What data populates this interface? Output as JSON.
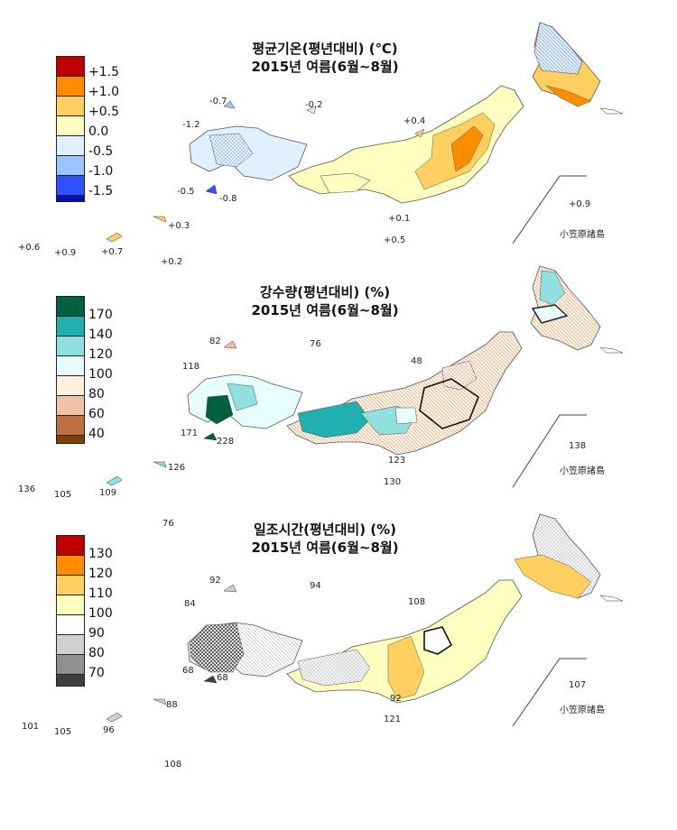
{
  "panels": [
    {
      "title_line1": "평균기온(평년대비) (℃)",
      "title_line2": "2015년 여름(6월~8월)",
      "legend": [
        {
          "label": "+1.5",
          "color": "#c00000"
        },
        {
          "label": "+1.0",
          "color": "#ff8c00"
        },
        {
          "label": "+0.5",
          "color": "#ffd060"
        },
        {
          "label": "0.0",
          "color": "#ffffc0"
        },
        {
          "label": "-0.5",
          "color": "#e0f0ff"
        },
        {
          "label": "-1.0",
          "color": "#9cc4ff"
        },
        {
          "label": "-1.5",
          "color": "#3050ff"
        },
        {
          "label": "",
          "color": "#0010c0"
        }
      ],
      "region_labels": {
        "a": "-0.7",
        "b": "-0.2",
        "c": "-1.2",
        "d": "+0.4",
        "e": "-0.5",
        "f": "-0.8",
        "g": "+0.1",
        "h": "+0.5",
        "i": "+0.9",
        "j": "+0.3",
        "k": "+0.6",
        "l": "+0.9",
        "m": "+0.7",
        "n": "+0.2"
      },
      "ogasawara_label": "小笠原諸島"
    },
    {
      "title_line1": "강수량(평년대비) (%)",
      "title_line2": "2015년 여름(6월~8월)",
      "legend": [
        {
          "label": "170",
          "color": "#006040"
        },
        {
          "label": "140",
          "color": "#20b0b0"
        },
        {
          "label": "120",
          "color": "#90e0e0"
        },
        {
          "label": "100",
          "color": "#e8ffff"
        },
        {
          "label": "80",
          "color": "#fff0e0"
        },
        {
          "label": "60",
          "color": "#f0c0a8"
        },
        {
          "label": "40",
          "color": "#c07040"
        },
        {
          "label": "",
          "color": "#804000"
        }
      ],
      "region_labels": {
        "a": "82",
        "b": "76",
        "c": "118",
        "d": "48",
        "e": "171",
        "f": "228",
        "g": "123",
        "h": "130",
        "i": "138",
        "j": "126",
        "k": "136",
        "l": "105",
        "m": "109",
        "n": "76"
      },
      "ogasawara_label": "小笠原諸島"
    },
    {
      "title_line1": "일조시간(평년대비) (%)",
      "title_line2": "2015년 여름(6월~8월)",
      "legend": [
        {
          "label": "130",
          "color": "#c00000"
        },
        {
          "label": "120",
          "color": "#ff8c00"
        },
        {
          "label": "110",
          "color": "#ffd060"
        },
        {
          "label": "100",
          "color": "#ffffc0"
        },
        {
          "label": "90",
          "color": "#ffffff"
        },
        {
          "label": "80",
          "color": "#d0d0d0"
        },
        {
          "label": "70",
          "color": "#909090"
        },
        {
          "label": "",
          "color": "#404040"
        }
      ],
      "region_labels": {
        "a": "92",
        "b": "94",
        "c": "84",
        "d": "108",
        "e": "68",
        "f": "68",
        "g": "92",
        "h": "121",
        "i": "107",
        "j": "88",
        "k": "101",
        "l": "105",
        "m": "96",
        "n": "108"
      },
      "ogasawara_label": "小笠原諸島"
    }
  ]
}
